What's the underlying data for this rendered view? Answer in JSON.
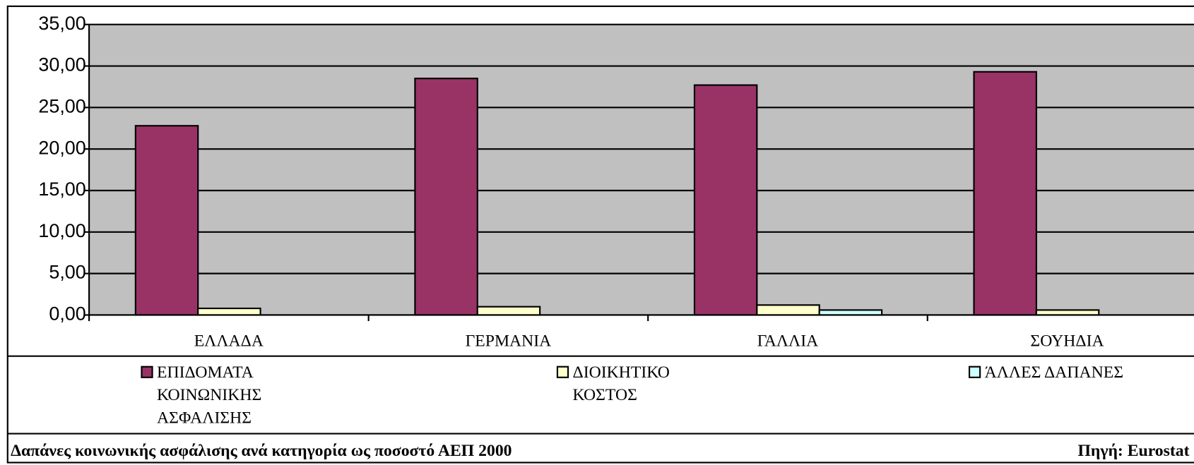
{
  "chart_data": {
    "type": "bar",
    "categories": [
      "ΕΛΛΑΔΑ",
      "ΓΕΡΜΑΝΙΑ",
      "ΓΑΛΛΙΑ",
      "ΣΟΥΗΔΙΑ"
    ],
    "series": [
      {
        "name": "ΕΠΙΔΟΜΑΤΑ ΚΟΙΝΩΝΙΚΗΣ ΑΣΦΑΛΙΣΗΣ",
        "color": "#993366",
        "values": [
          22.8,
          28.5,
          27.7,
          29.3
        ]
      },
      {
        "name": "ΔΙΟΙΚΗΤΙΚΟ ΚΟΣΤΟΣ",
        "color": "#ffffcc",
        "values": [
          0.8,
          1.0,
          1.2,
          0.6
        ]
      },
      {
        "name": "ΆΛΛΕΣ ΔΑΠΑΝΕΣ",
        "color": "#ccffff",
        "values": [
          0,
          0,
          0.6,
          0
        ]
      }
    ],
    "ylim": [
      0,
      35
    ],
    "yticks": [
      {
        "value": 0,
        "label": "0,00"
      },
      {
        "value": 5,
        "label": "5,00"
      },
      {
        "value": 10,
        "label": "10,00"
      },
      {
        "value": 15,
        "label": "15,00"
      },
      {
        "value": 20,
        "label": "20,00"
      },
      {
        "value": 25,
        "label": "25,00"
      },
      {
        "value": 30,
        "label": "30,00"
      },
      {
        "value": 35,
        "label": "35,00"
      }
    ],
    "grid": true,
    "legend": "bottom",
    "caption": "Δαπάνες κοινωνικής ασφάλισης ανά κατηγορία ως ποσοστό ΑΕΠ 2000",
    "source": "Πηγή: Eurostat"
  }
}
